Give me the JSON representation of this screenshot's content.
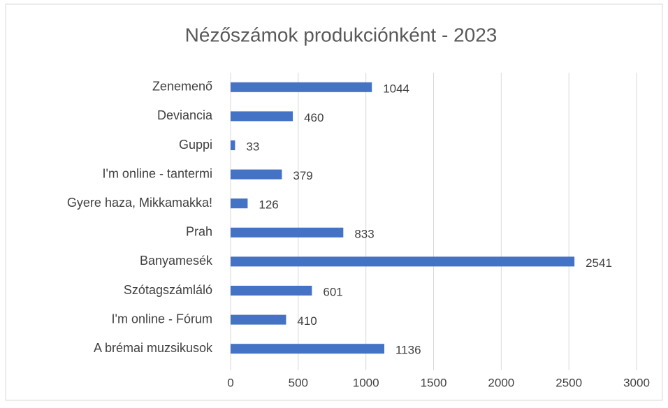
{
  "chart_data": {
    "type": "bar",
    "orientation": "horizontal",
    "title": "Nézőszámok produkciónként - 2023",
    "categories": [
      "Zenemenő",
      "Deviancia",
      "Guppi",
      "I'm online - tantermi",
      "Gyere haza, Mikkamakka!",
      "Prah",
      "Banyamesék",
      "Szótagszámláló",
      "I'm online - Fórum",
      "A brémai muzsikusok"
    ],
    "values": [
      1044,
      460,
      33,
      379,
      126,
      833,
      2541,
      601,
      410,
      1136
    ],
    "color": "#4472c4",
    "xlim": [
      0,
      3000
    ],
    "xticks": [
      0,
      500,
      1000,
      1500,
      2000,
      2500,
      3000
    ],
    "grid": true
  }
}
